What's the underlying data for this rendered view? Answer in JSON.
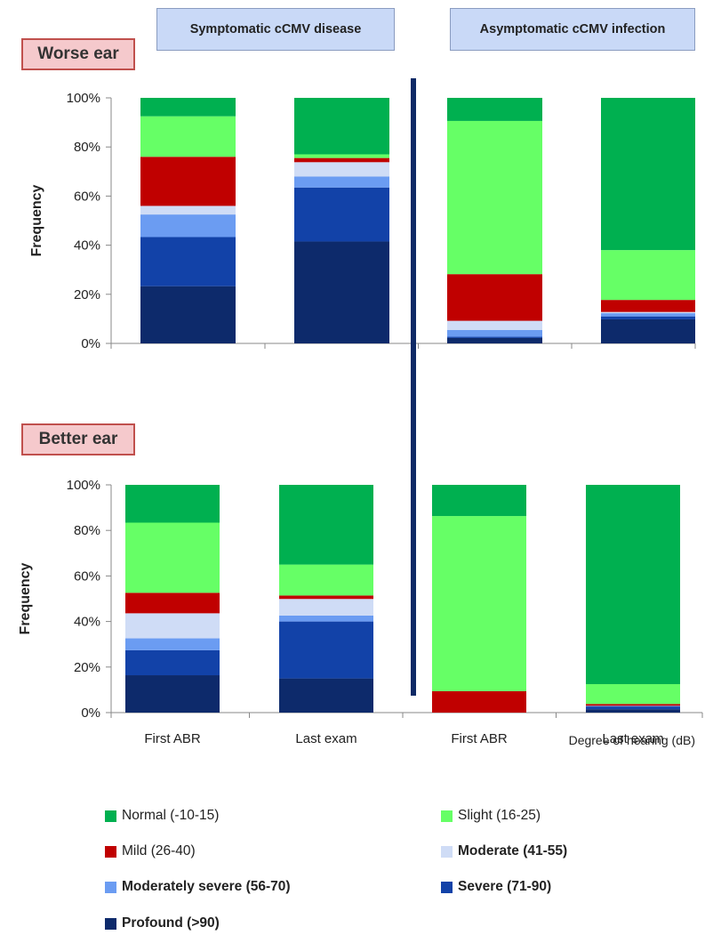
{
  "group_headers": [
    "Symptomatic cCMV disease",
    "Asymptomatic cCMV infection"
  ],
  "panel_labels": [
    "Worse ear",
    "Better ear"
  ],
  "y_axis_label": "Frequency",
  "y_ticks": [
    "0%",
    "20%",
    "40%",
    "60%",
    "80%",
    "100%"
  ],
  "x_caption": "Degree of hearing (dB)",
  "categories": [
    "First ABR",
    "Last exam",
    "First ABR",
    "Last exam"
  ],
  "colors": {
    "profound": "#0d2a6b",
    "severe": "#1242a8",
    "moderately_severe": "#6b9cf2",
    "moderate": "#cfdcf6",
    "mild": "#c00000",
    "slight": "#66ff66",
    "normal": "#00b050"
  },
  "legend": [
    {
      "key": "normal",
      "label": "Normal (-10-15)",
      "bold": false
    },
    {
      "key": "slight",
      "label": "Slight (16-25)",
      "bold": false
    },
    {
      "key": "mild",
      "label": "Mild (26-40)",
      "bold": false
    },
    {
      "key": "moderate",
      "label": "Moderate (41-55)",
      "bold": true
    },
    {
      "key": "moderately_severe",
      "label": "Moderately severe (56-70)",
      "bold": true
    },
    {
      "key": "severe",
      "label": "Severe (71-90)",
      "bold": true
    },
    {
      "key": "profound",
      "label": "Profound (>90)",
      "bold": true
    }
  ],
  "chart_data": [
    {
      "type": "bar",
      "stacked": true,
      "title": "Worse ear",
      "categories": [
        "First ABR",
        "Last exam",
        "First ABR",
        "Last exam"
      ],
      "category_groups": [
        "Symptomatic cCMV disease",
        "Symptomatic cCMV disease",
        "Asymptomatic cCMV infection",
        "Asymptomatic cCMV infection"
      ],
      "ylabel": "Frequency",
      "ylim": [
        0,
        100
      ],
      "series": [
        {
          "name": "Profound (>90)",
          "key": "profound",
          "values": [
            23.3,
            41.5,
            2.2,
            9.8
          ]
        },
        {
          "name": "Severe (71-90)",
          "key": "severe",
          "values": [
            20.0,
            22.0,
            0.5,
            1.2
          ]
        },
        {
          "name": "Moderately severe (56-70)",
          "key": "moderately_severe",
          "values": [
            9.2,
            4.5,
            2.8,
            1.3
          ]
        },
        {
          "name": "Moderate (41-55)",
          "key": "moderate",
          "values": [
            3.5,
            5.8,
            3.7,
            0.5
          ]
        },
        {
          "name": "Mild (26-40)",
          "key": "mild",
          "values": [
            20.0,
            1.7,
            19.0,
            4.9
          ]
        },
        {
          "name": "Slight (16-25)",
          "key": "slight",
          "values": [
            16.5,
            1.5,
            62.4,
            20.3
          ]
        },
        {
          "name": "Normal (-10-15)",
          "key": "normal",
          "values": [
            7.5,
            23.0,
            9.4,
            62.0
          ]
        }
      ]
    },
    {
      "type": "bar",
      "stacked": true,
      "title": "Better ear",
      "categories": [
        "First ABR",
        "Last exam",
        "First ABR",
        "Last exam"
      ],
      "category_groups": [
        "Symptomatic cCMV disease",
        "Symptomatic cCMV disease",
        "Asymptomatic cCMV infection",
        "Asymptomatic cCMV infection"
      ],
      "ylabel": "Frequency",
      "ylim": [
        0,
        100
      ],
      "xlabel": "Degree of hearing (dB)",
      "series": [
        {
          "name": "Profound (>90)",
          "key": "profound",
          "values": [
            16.4,
            15.0,
            0.0,
            1.5
          ]
        },
        {
          "name": "Severe (71-90)",
          "key": "severe",
          "values": [
            11.0,
            25.0,
            0.0,
            1.2
          ]
        },
        {
          "name": "Moderately severe (56-70)",
          "key": "moderately_severe",
          "values": [
            5.2,
            2.6,
            0.0,
            0.3
          ]
        },
        {
          "name": "Moderate (41-55)",
          "key": "moderate",
          "values": [
            11.0,
            7.3,
            0.0,
            0.0
          ]
        },
        {
          "name": "Mild (26-40)",
          "key": "mild",
          "values": [
            9.0,
            1.5,
            9.4,
            0.8
          ]
        },
        {
          "name": "Slight (16-25)",
          "key": "slight",
          "values": [
            30.8,
            13.6,
            76.9,
            8.7
          ]
        },
        {
          "name": "Normal (-10-15)",
          "key": "normal",
          "values": [
            16.6,
            35.0,
            13.7,
            87.5
          ]
        }
      ]
    }
  ]
}
